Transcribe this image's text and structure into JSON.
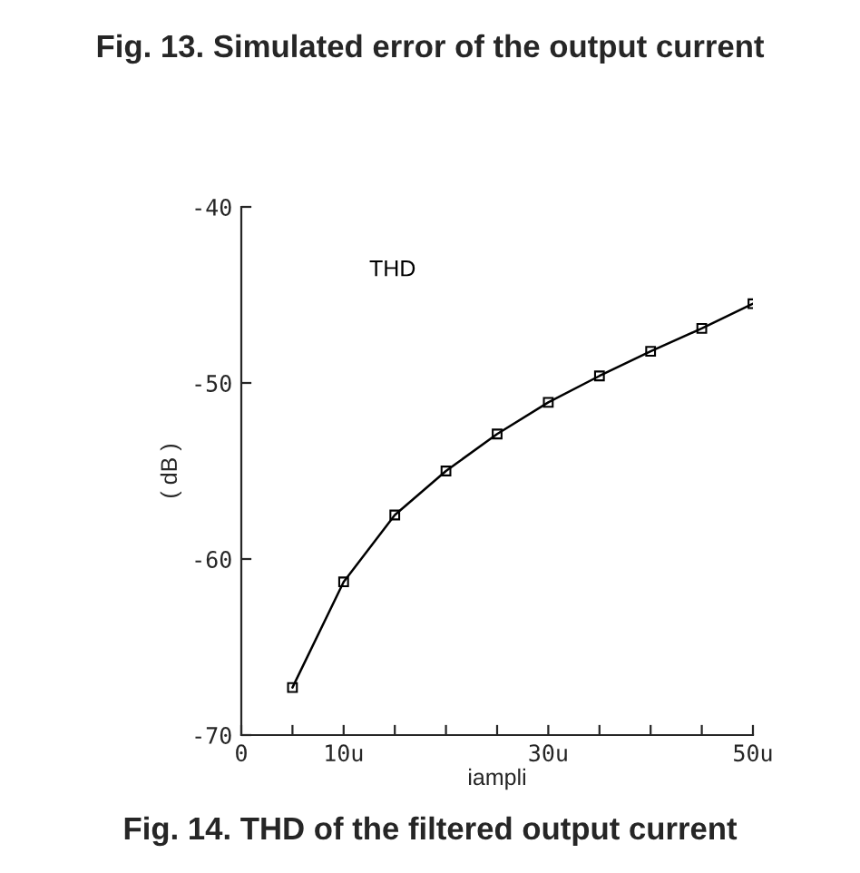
{
  "chart_data": {
    "type": "line",
    "title": "Fig. 14. THD of the filtered output current",
    "xlabel": "iampli",
    "ylabel": "( dB )",
    "annotations": [
      "Fig. 13. Simulated error of the output current"
    ],
    "x": [
      5,
      10,
      15,
      20,
      25,
      30,
      35,
      40,
      45,
      50
    ],
    "series": [
      {
        "name": "THD",
        "color": "#000000",
        "values": [
          -67.3,
          -61.3,
          -57.5,
          -55.0,
          -52.9,
          -51.1,
          -49.6,
          -48.2,
          -46.9,
          -45.5
        ]
      }
    ],
    "marker": "square",
    "line_style": "solid",
    "grid": false,
    "legend": "top left",
    "xlim": [
      0,
      50
    ],
    "ylim": [
      -70,
      -40
    ],
    "xticks": [
      0,
      {
        "value": 5,
        "label": null
      },
      {
        "value": 10,
        "label": "10u"
      },
      {
        "value": 15,
        "label": null
      },
      {
        "value": 20,
        "label": null
      },
      {
        "value": 25,
        "label": null
      },
      {
        "value": 30,
        "label": "30u"
      },
      {
        "value": 35,
        "label": null
      },
      {
        "value": 40,
        "label": null
      },
      {
        "value": 45,
        "label": null
      },
      {
        "value": 50,
        "label": "50u"
      }
    ],
    "yticks": [
      -70,
      -60,
      -50,
      -40
    ]
  }
}
